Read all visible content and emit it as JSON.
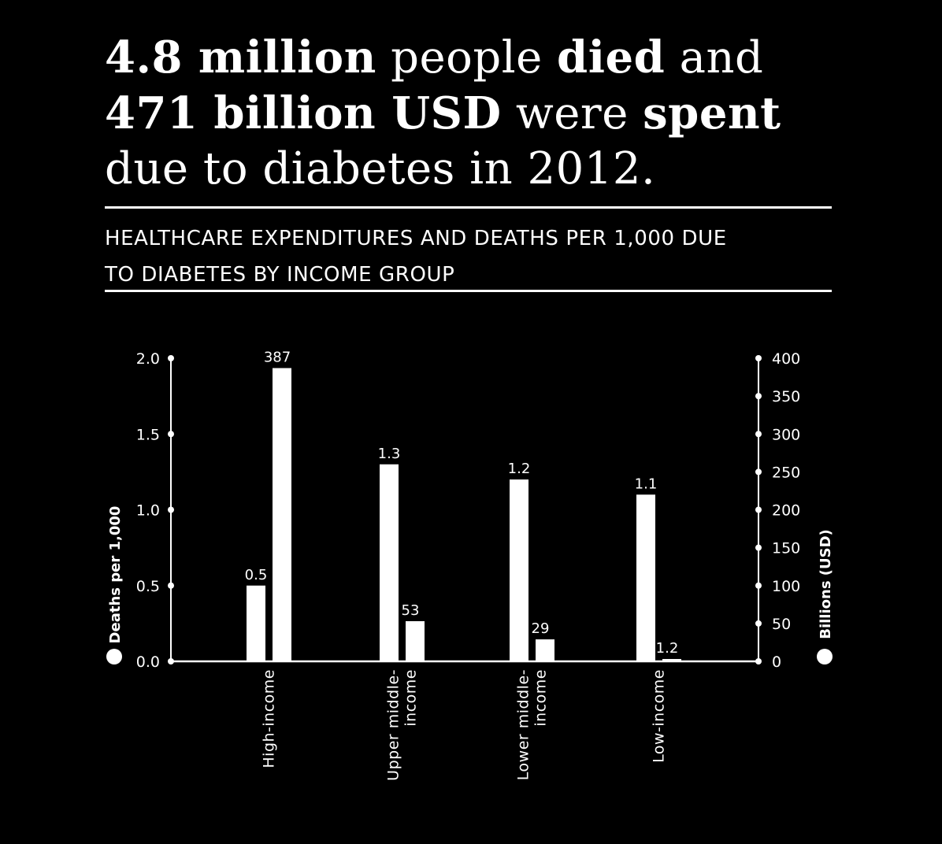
{
  "headline": {
    "l1_bold_a": "4.8 million",
    "l1_reg_a": " people ",
    "l1_bold_b": "died",
    "l1_reg_b": " and",
    "l2_bold_a": "471 billion USD",
    "l2_reg_a": " were ",
    "l2_bold_b": "spent",
    "l3_reg": "due to diabetes in 2012."
  },
  "subtitle": {
    "line1": "HEALTHCARE EXPENDITURES AND DEATHS PER 1,000 DUE",
    "line2": "TO DIABETES BY INCOME GROUP"
  },
  "chart_data": {
    "type": "bar",
    "categories": [
      [
        "High-income"
      ],
      [
        "Upper middle-",
        "income"
      ],
      [
        "Lower middle-",
        "income"
      ],
      [
        "Low-income"
      ]
    ],
    "series": [
      {
        "name": "Deaths per 1,000",
        "axis": "left",
        "values": [
          0.5,
          1.3,
          1.2,
          1.1
        ],
        "labels": [
          "0.5",
          "1.3",
          "1.2",
          "1.1"
        ]
      },
      {
        "name": "Billions (USD)",
        "axis": "right",
        "values": [
          387,
          53,
          29,
          1.2
        ],
        "labels": [
          "387",
          "53",
          "29",
          "1.2"
        ]
      }
    ],
    "ylabel_left": "Deaths per 1,000",
    "ylabel_right": "Billions (USD)",
    "ylim_left": [
      0,
      2.0
    ],
    "ylim_right": [
      0,
      400
    ],
    "yticks_left": [
      "0.0",
      "0.5",
      "1.0",
      "1.5",
      "2.0"
    ],
    "yticks_right": [
      "0",
      "50",
      "100",
      "150",
      "200",
      "250",
      "300",
      "350",
      "400"
    ],
    "colors": {
      "background": "#000000",
      "bars": "#ffffff",
      "text": "#ffffff"
    }
  }
}
